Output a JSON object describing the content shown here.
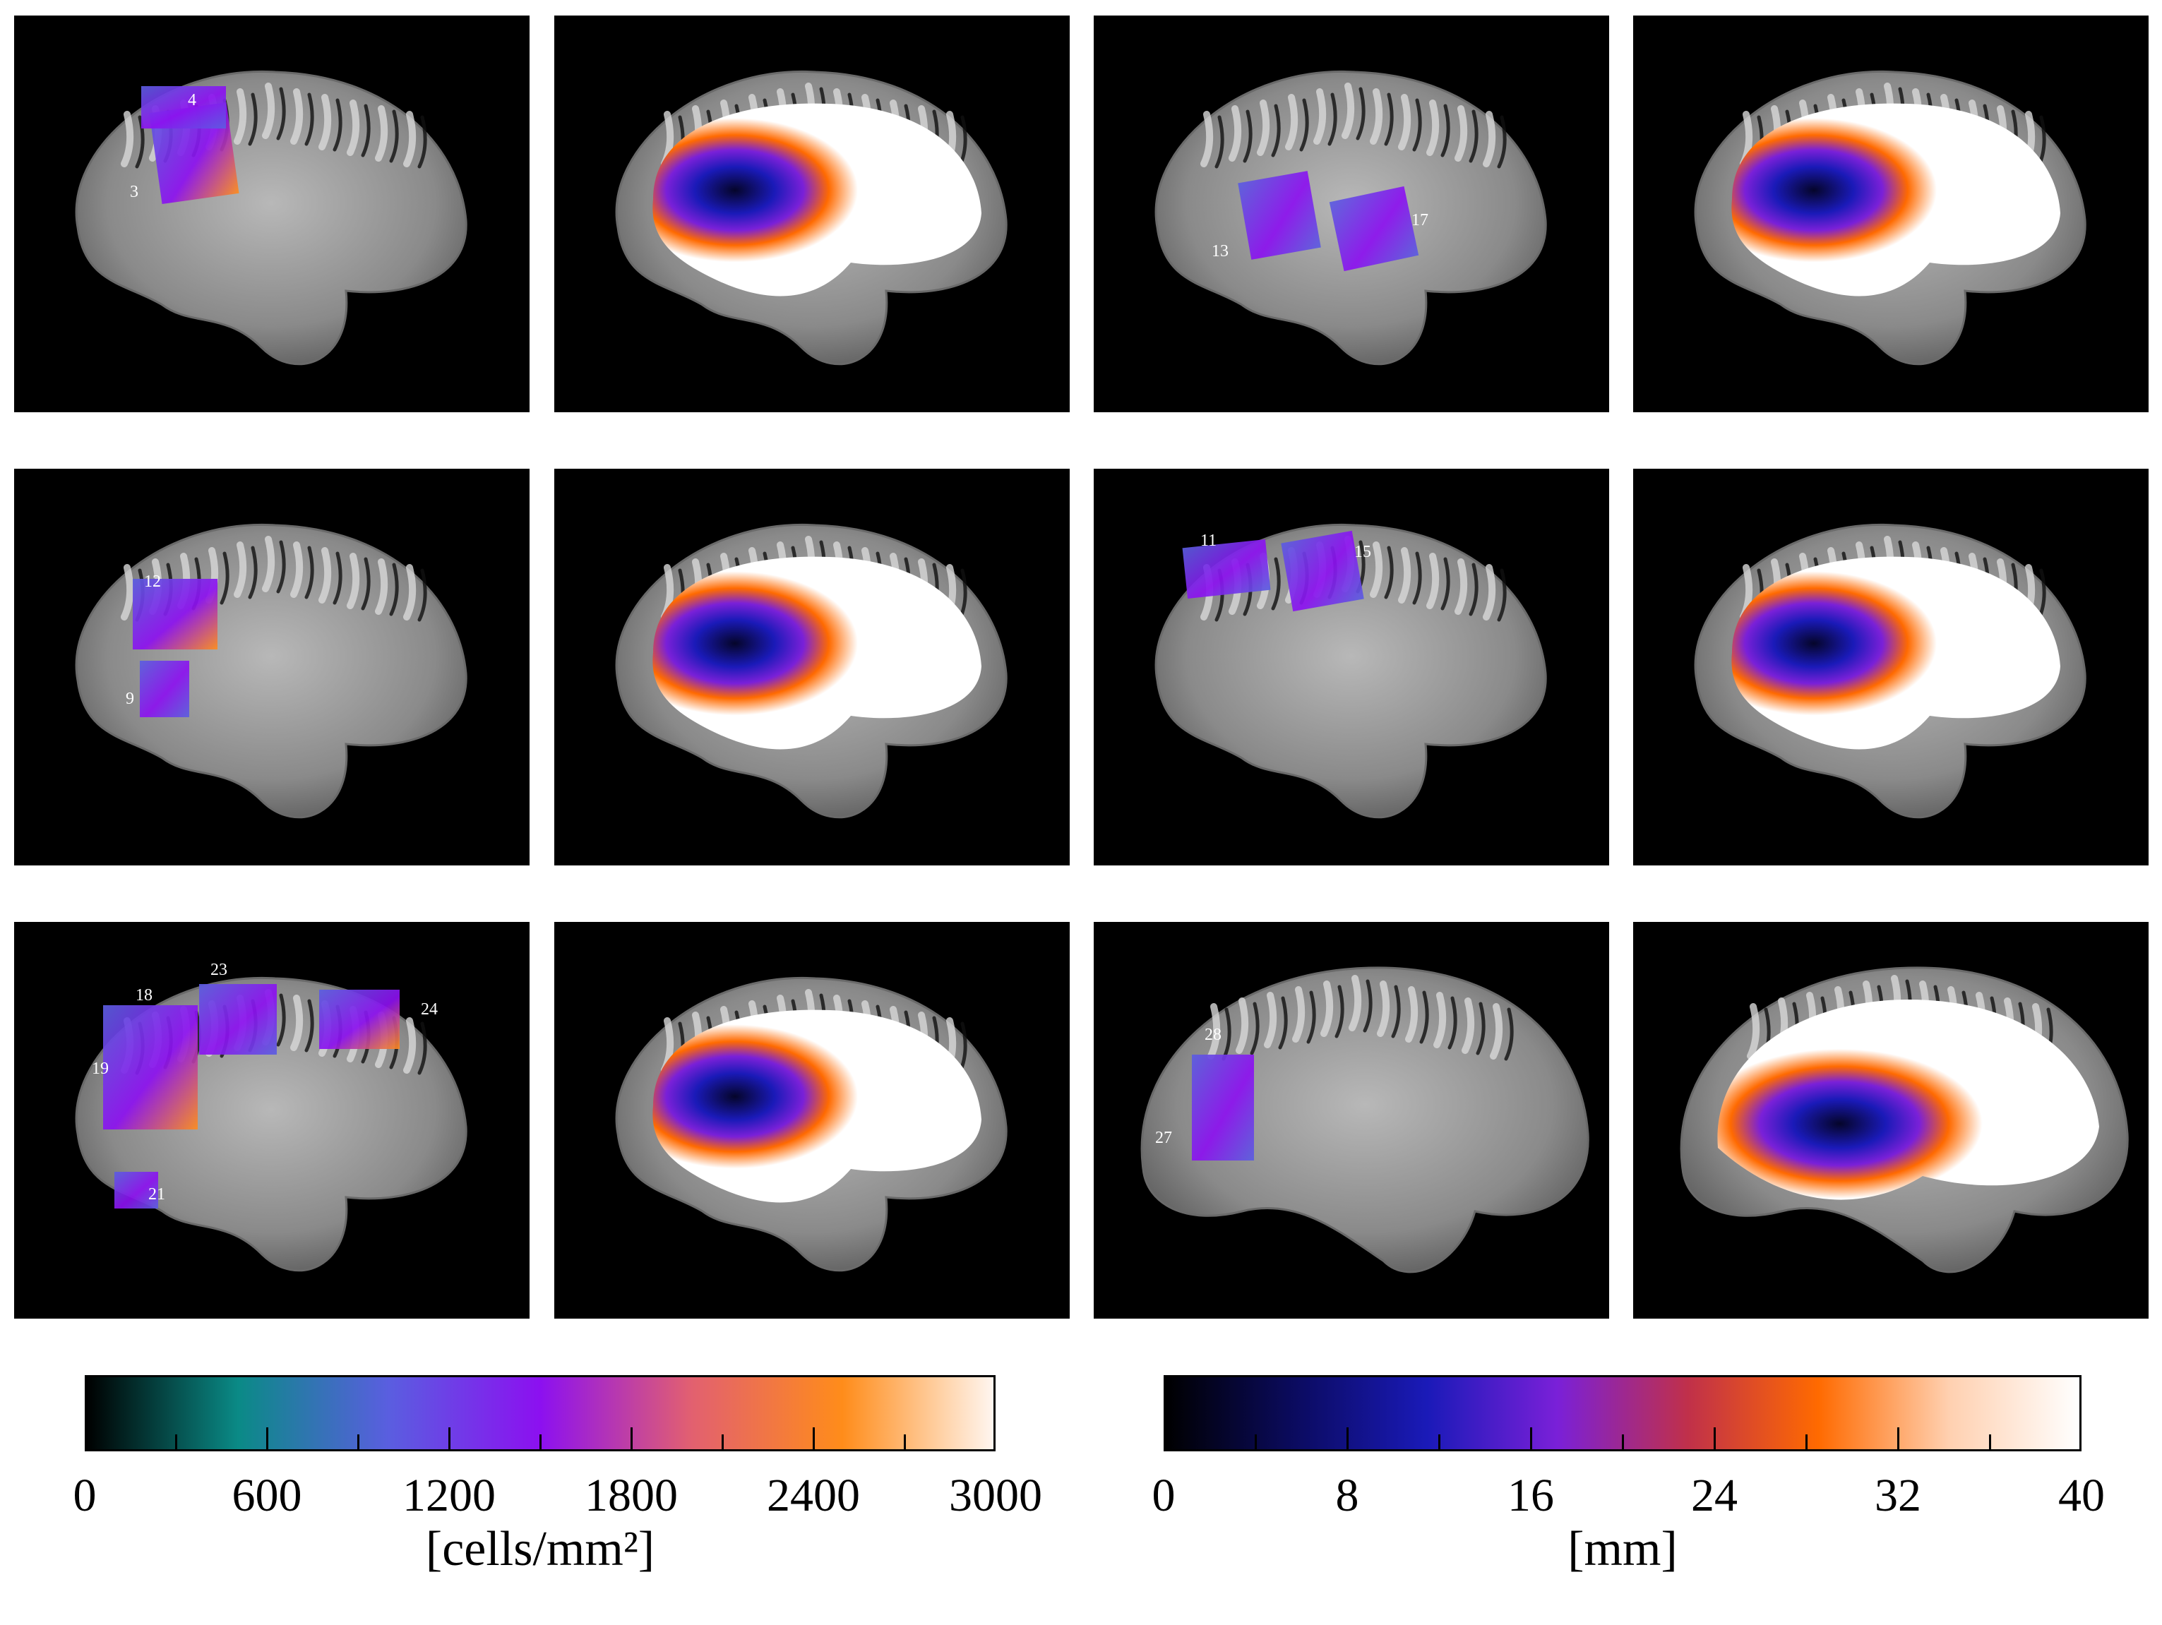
{
  "panels": [
    {
      "kind": "histology",
      "labels": [
        "4",
        "3"
      ]
    },
    {
      "kind": "distance",
      "labels": []
    },
    {
      "kind": "histology",
      "labels": [
        "13",
        "17"
      ]
    },
    {
      "kind": "distance",
      "labels": []
    },
    {
      "kind": "histology",
      "labels": [
        "12",
        "9"
      ]
    },
    {
      "kind": "distance",
      "labels": []
    },
    {
      "kind": "histology",
      "labels": [
        "11",
        "15"
      ]
    },
    {
      "kind": "distance",
      "labels": []
    },
    {
      "kind": "histology",
      "labels": [
        "18",
        "23",
        "24",
        "19",
        "21"
      ]
    },
    {
      "kind": "distance",
      "labels": []
    },
    {
      "kind": "histology",
      "labels": [
        "28",
        "27"
      ]
    },
    {
      "kind": "distance",
      "labels": []
    }
  ],
  "colorbars": [
    {
      "name": "cell-density",
      "ticks": [
        "0",
        "600",
        "1200",
        "1800",
        "2400",
        "3000"
      ],
      "minor_ticks": 5,
      "unit": "[cells/mm²]",
      "colors": [
        "#000000",
        "#0a8a86",
        "#5a5ee0",
        "#8c10f0",
        "#e26070",
        "#ff8c1a",
        "#fff6f0"
      ]
    },
    {
      "name": "distance",
      "ticks": [
        "0",
        "8",
        "16",
        "24",
        "32",
        "40"
      ],
      "minor_ticks": 5,
      "unit": "[mm]",
      "colors": [
        "#000000",
        "#0b0b60",
        "#1a1ab8",
        "#7a20d8",
        "#c0304a",
        "#ff6a00",
        "#ffd0b0",
        "#ffffff"
      ]
    }
  ]
}
